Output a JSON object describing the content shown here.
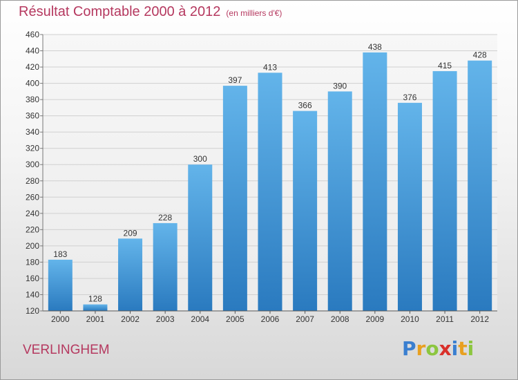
{
  "title": "Résultat Comptable 2000 à 2012",
  "unit_label": "(en milliers d'€)",
  "commune": "VERLINGHEM",
  "logo": {
    "letters": [
      "P",
      "r",
      "o",
      "x",
      "i",
      "t",
      "i"
    ],
    "colors": [
      "#3a7fd0",
      "#e8a020",
      "#8cc63f",
      "#d9302a",
      "#3a7fd0",
      "#e8a020",
      "#8cc63f"
    ]
  },
  "colors": {
    "bar_top": "#63b4ea",
    "bar_bottom": "#2a7abf",
    "title": "#b5385f"
  },
  "chart_data": {
    "type": "bar",
    "title": "Résultat Comptable 2000 à 2012",
    "subtitle": "(en milliers d'€)",
    "xlabel": "",
    "ylabel": "",
    "categories": [
      "2000",
      "2001",
      "2002",
      "2003",
      "2004",
      "2005",
      "2006",
      "2007",
      "2008",
      "2009",
      "2010",
      "2011",
      "2012"
    ],
    "values": [
      183,
      128,
      209,
      228,
      300,
      397,
      413,
      366,
      390,
      438,
      376,
      415,
      428
    ],
    "ylim": [
      120,
      460
    ],
    "yticks": [
      120,
      140,
      160,
      180,
      200,
      220,
      240,
      260,
      280,
      300,
      320,
      340,
      360,
      380,
      400,
      420,
      440,
      460
    ],
    "grid": true,
    "legend": "none"
  }
}
